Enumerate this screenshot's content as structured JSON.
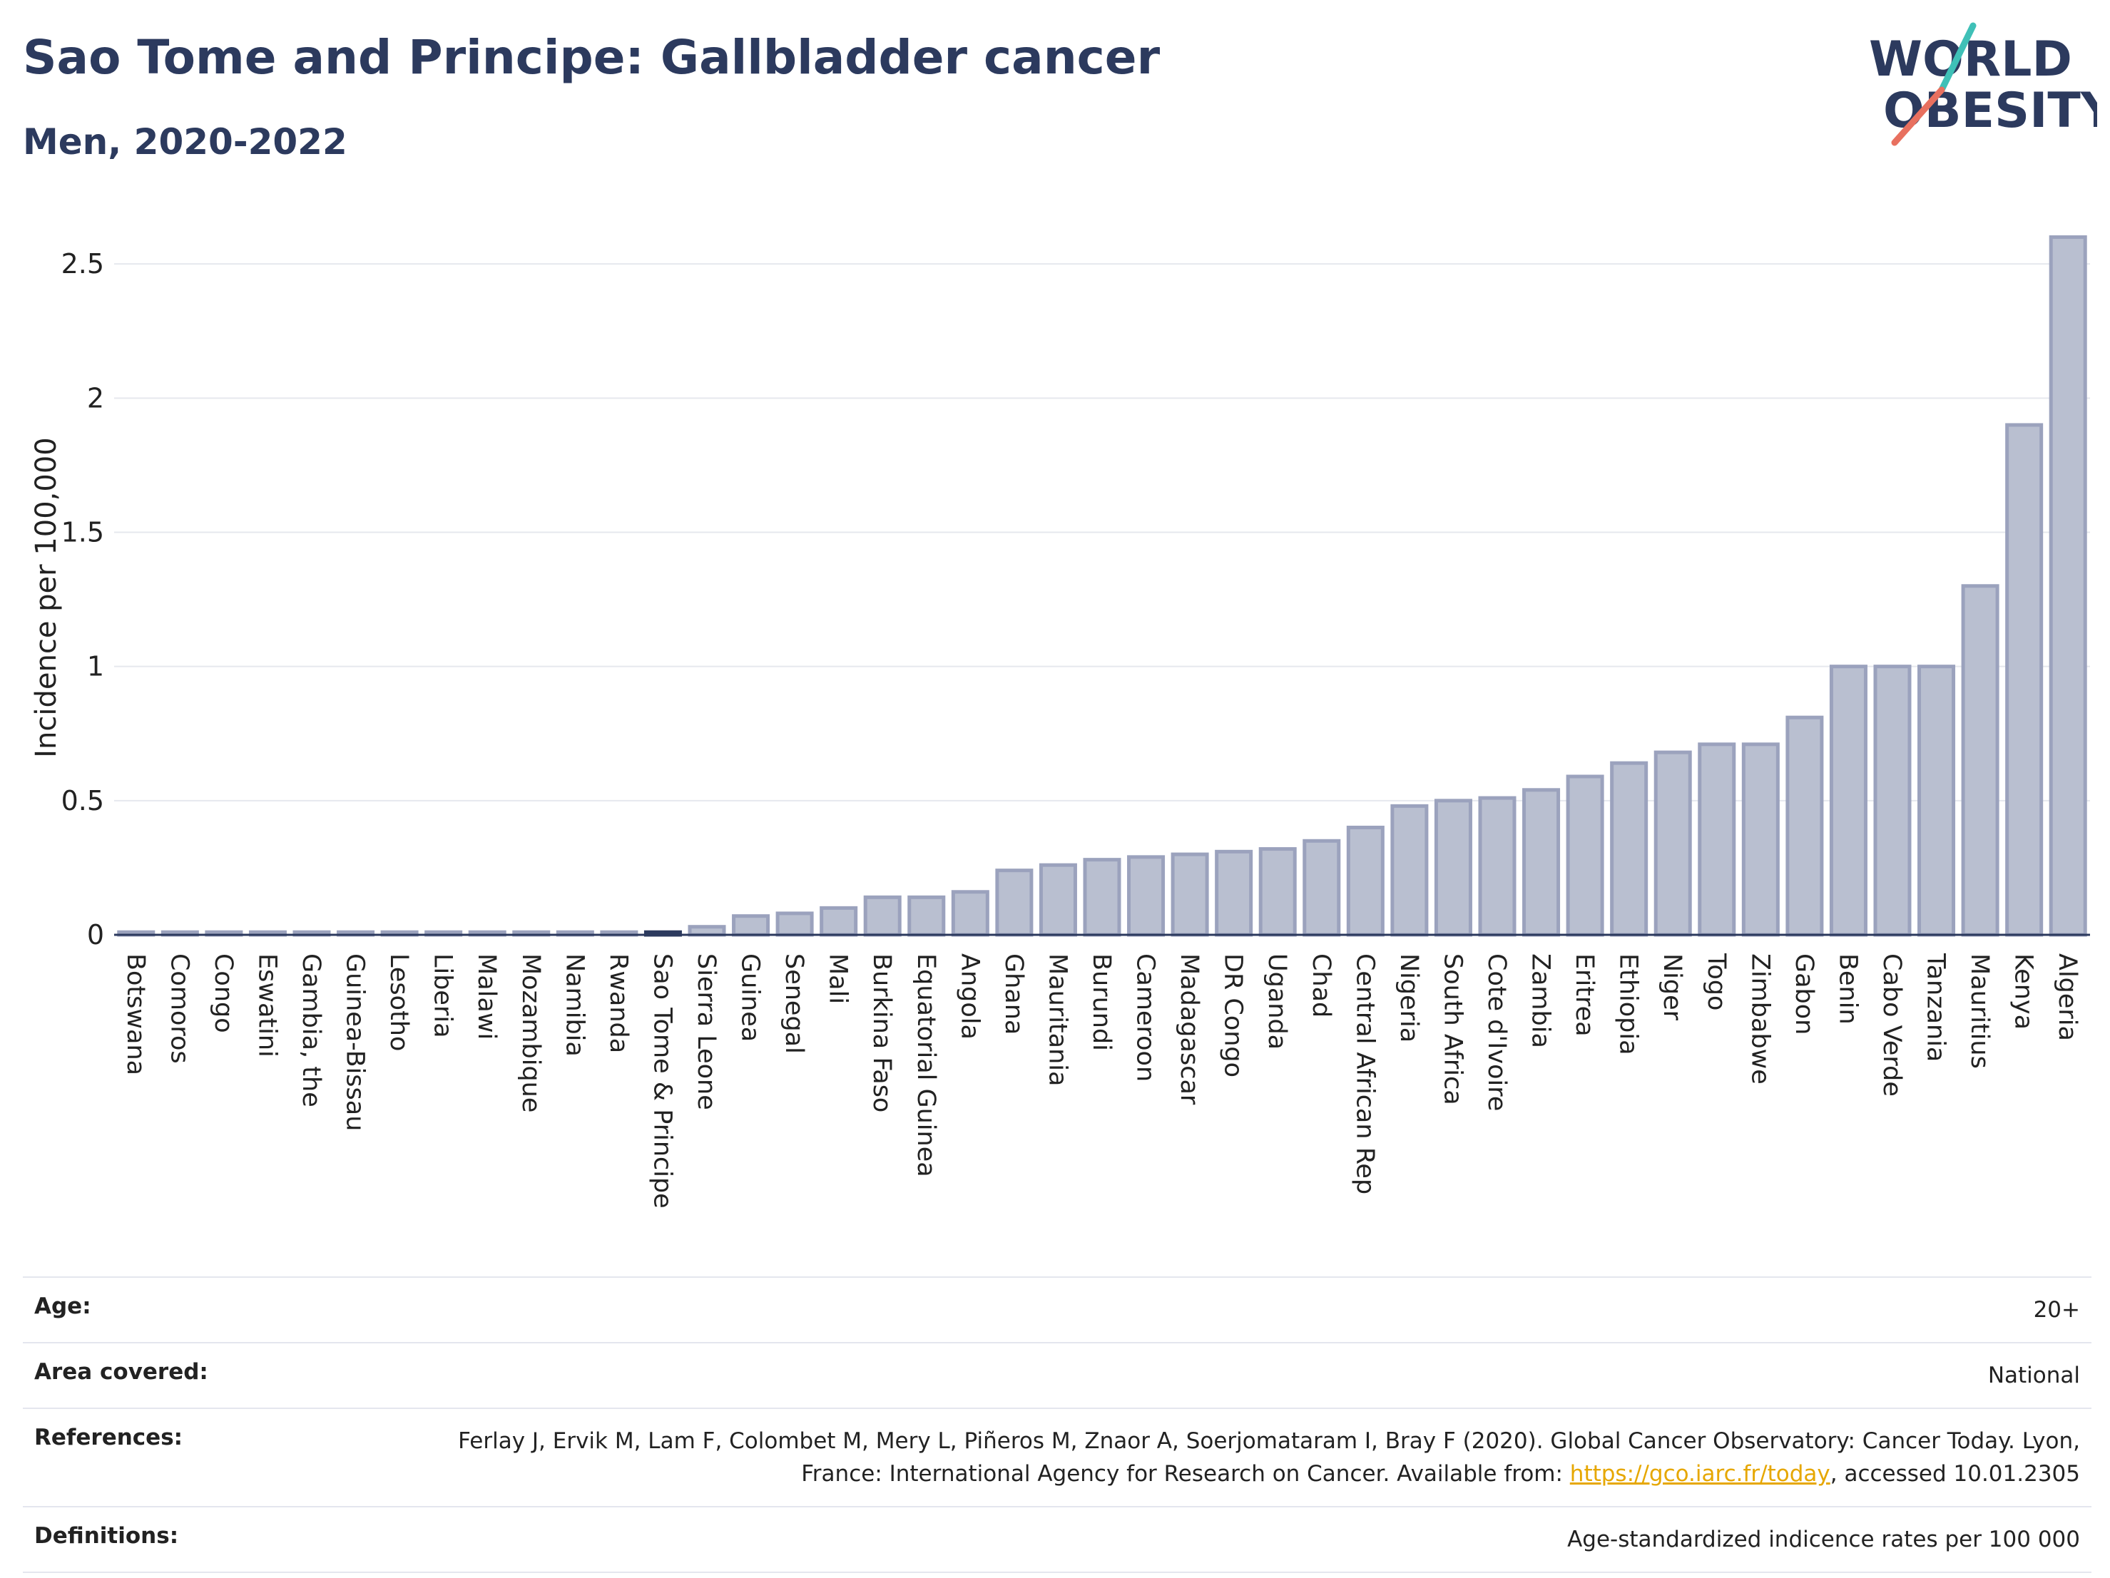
{
  "header": {
    "title": "Sao Tome and Principe: Gallbladder cancer",
    "subtitle": "Men, 2020-2022",
    "logo_line1": "WORLD",
    "logo_line2": "OBESITY"
  },
  "colors": {
    "title": "#2c3a5e",
    "bar_fill": "#b9bfd0",
    "bar_stroke": "#9ba2bd",
    "highlight": "#2c3a5e",
    "grid": "#e6e8ee",
    "logo_teal": "#3fc0b7",
    "logo_coral": "#e8705f",
    "link": "#e6a700"
  },
  "chart_data": {
    "type": "bar",
    "ylabel": "Incidence per 100,000",
    "xlabel": "",
    "ylim": [
      0,
      2.62
    ],
    "yticks": [
      "0",
      "0.5",
      "1",
      "1.5",
      "2",
      "2.5"
    ],
    "ytick_values": [
      0,
      0.5,
      1,
      1.5,
      2,
      2.5
    ],
    "grid": true,
    "highlight_category": "Sao Tome & Principe",
    "categories": [
      "Botswana",
      "Comoros",
      "Congo",
      "Eswatini",
      "Gambia, the",
      "Guinea-Bissau",
      "Lesotho",
      "Liberia",
      "Malawi",
      "Mozambique",
      "Namibia",
      "Rwanda",
      "Sao Tome & Principe",
      "Sierra Leone",
      "Guinea",
      "Senegal",
      "Mali",
      "Burkina Faso",
      "Equatorial Guinea",
      "Angola",
      "Ghana",
      "Mauritania",
      "Burundi",
      "Cameroon",
      "Madagascar",
      "DR Congo",
      "Uganda",
      "Chad",
      "Central African Rep",
      "Nigeria",
      "South Africa",
      "Cote d'Ivoire",
      "Zambia",
      "Eritrea",
      "Ethiopia",
      "Niger",
      "Togo",
      "Zimbabwe",
      "Gabon",
      "Benin",
      "Cabo Verde",
      "Tanzania",
      "Mauritius",
      "Kenya",
      "Algeria"
    ],
    "values": [
      0.01,
      0.01,
      0.01,
      0.01,
      0.01,
      0.01,
      0.01,
      0.01,
      0.01,
      0.01,
      0.01,
      0.01,
      0.01,
      0.03,
      0.07,
      0.08,
      0.1,
      0.14,
      0.14,
      0.16,
      0.24,
      0.26,
      0.28,
      0.29,
      0.3,
      0.31,
      0.32,
      0.35,
      0.4,
      0.48,
      0.5,
      0.51,
      0.54,
      0.59,
      0.64,
      0.68,
      0.71,
      0.71,
      0.81,
      1.0,
      1.0,
      1.0,
      1.3,
      1.9,
      2.6
    ]
  },
  "info": {
    "age_label": "Age:",
    "age_value": "20+",
    "area_label": "Area covered:",
    "area_value": "National",
    "references_label": "References:",
    "references_text1": "Ferlay J, Ervik M, Lam F, Colombet M, Mery L, Piñeros M, Znaor A, Soerjomataram I, Bray F (2020). Global Cancer Observatory: Cancer Today. Lyon, France: International Agency for Research on Cancer. Available from: ",
    "references_link": "https://gco.iarc.fr/today",
    "references_text2": ", accessed 10.01.2305",
    "definitions_label": "Definitions:",
    "definitions_value": "Age-standardized indicence rates per 100 000"
  }
}
